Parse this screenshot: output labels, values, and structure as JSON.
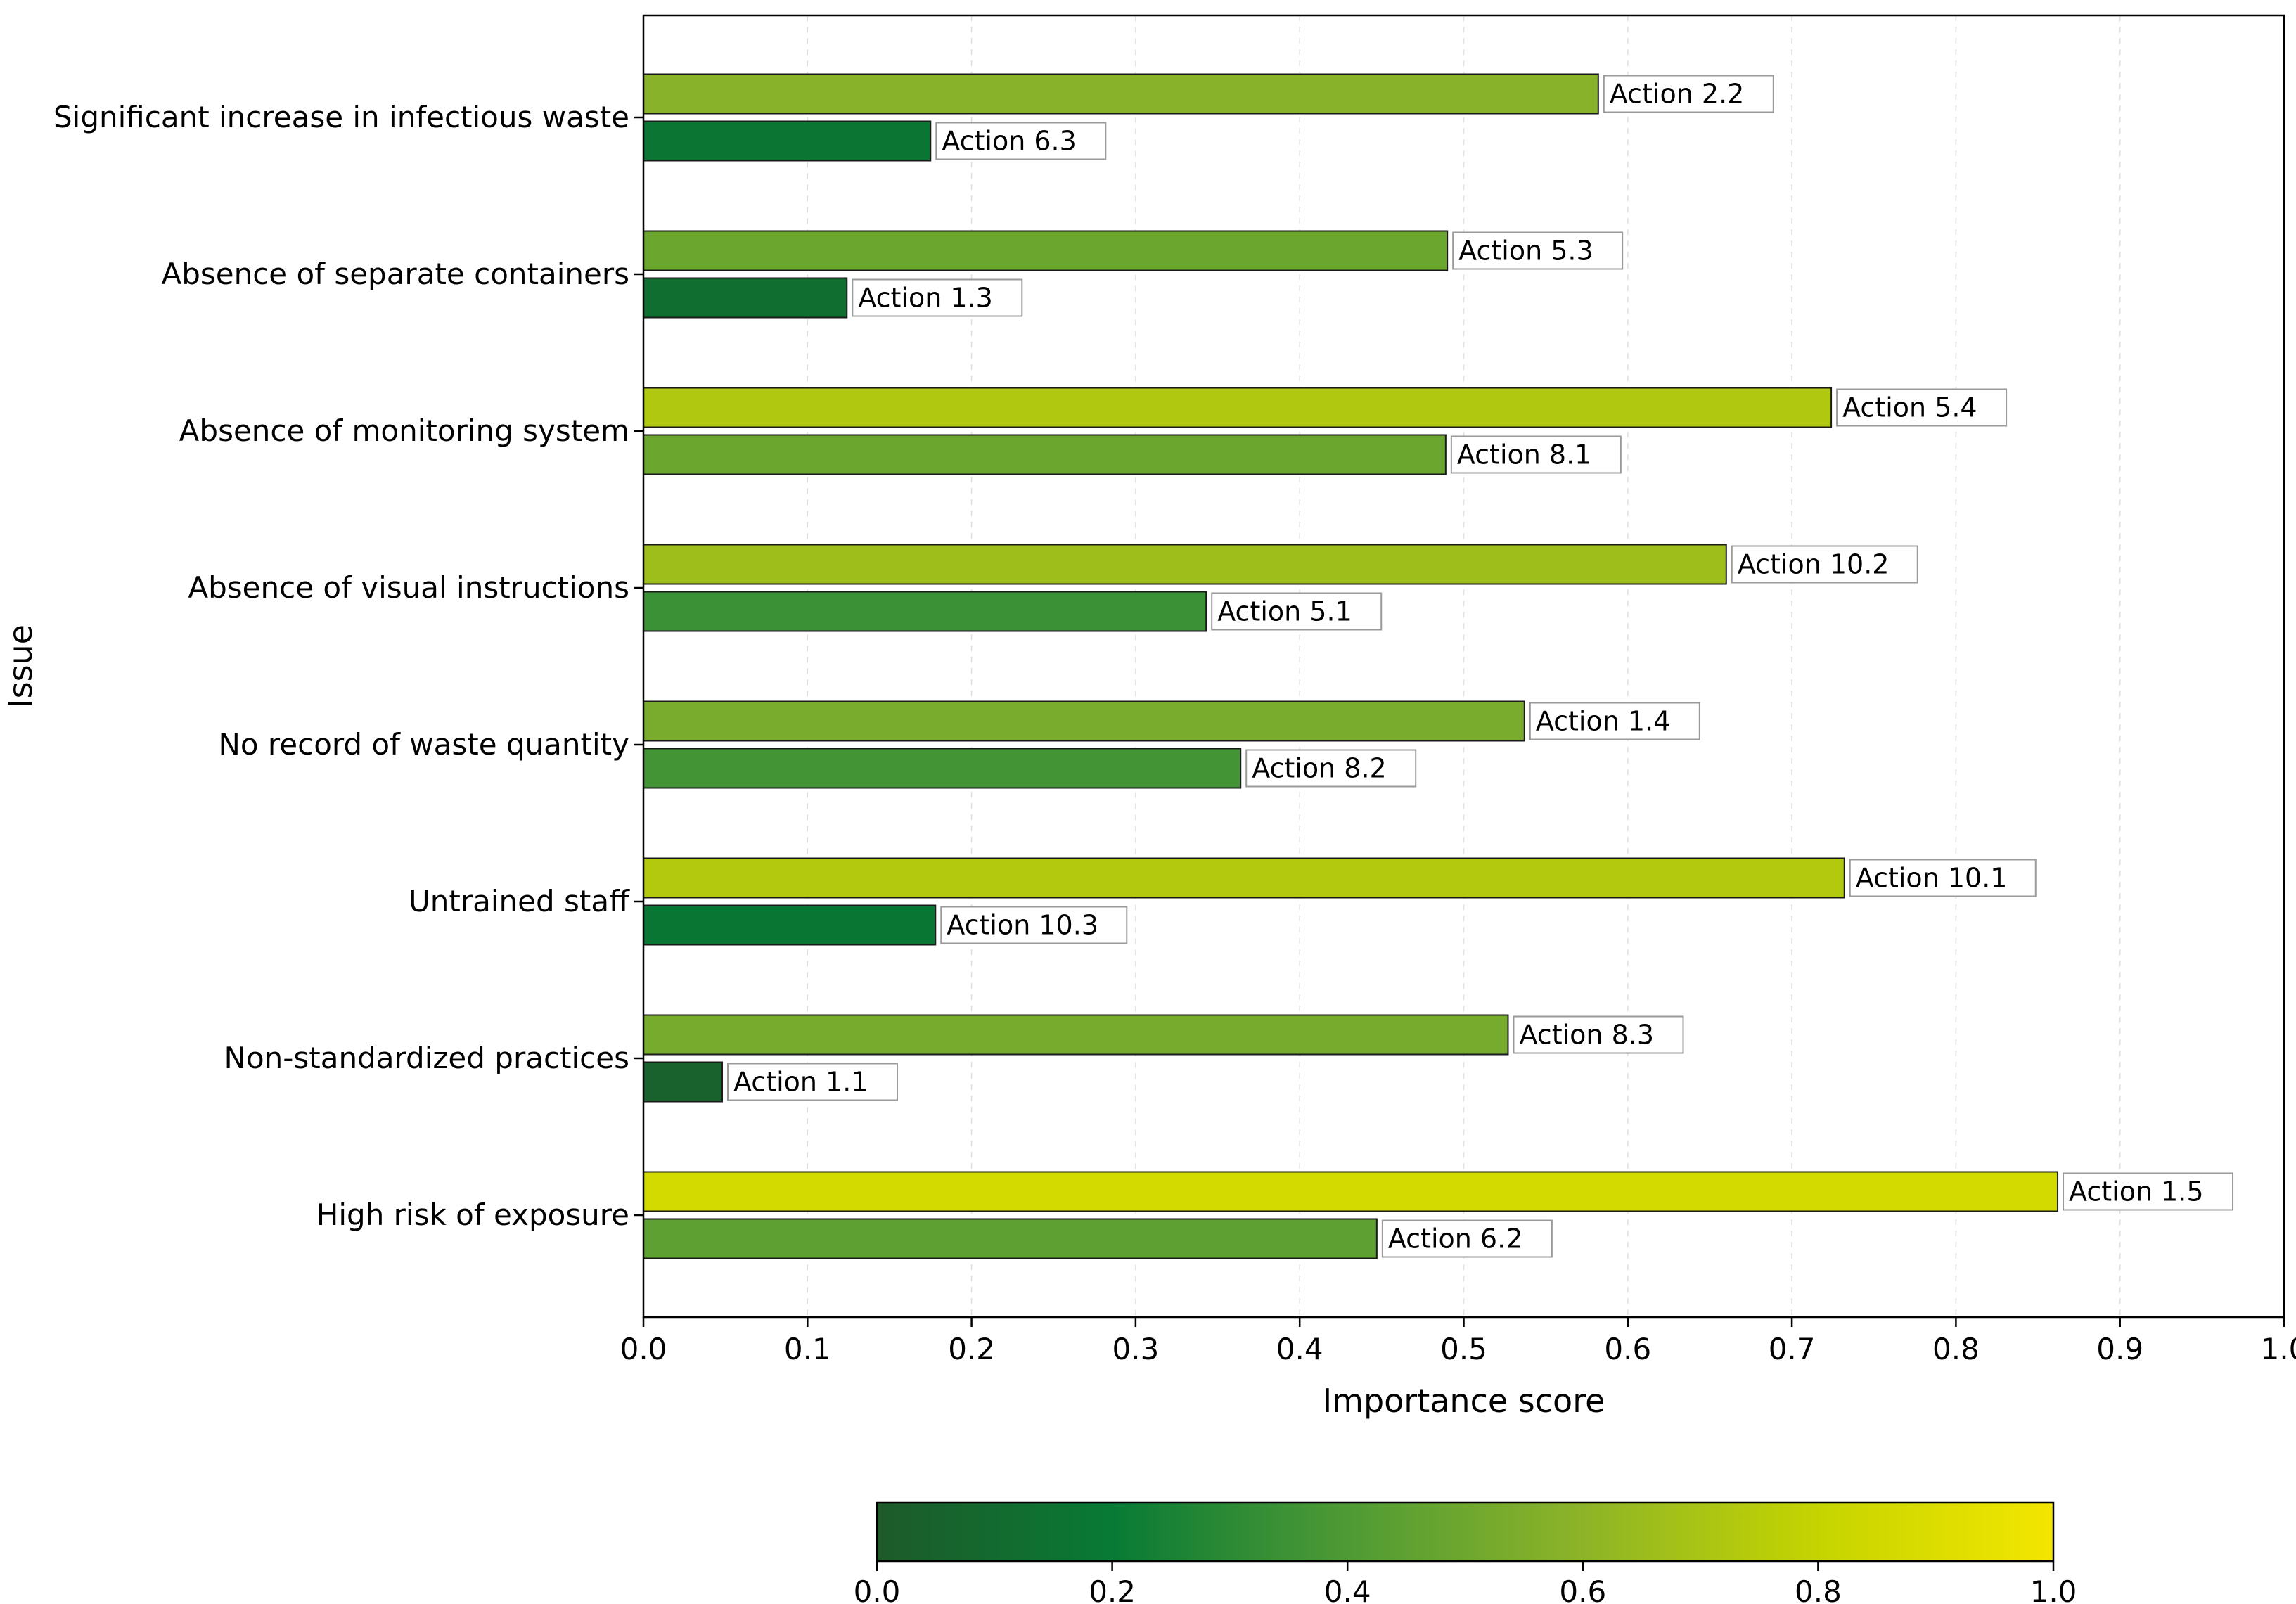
{
  "chart_data": {
    "type": "bar",
    "orientation": "horizontal",
    "title": "",
    "xlabel": "Importance score",
    "ylabel": "Issue",
    "xlim": [
      0,
      1.0
    ],
    "xticks": [
      "0.0",
      "0.1",
      "0.2",
      "0.3",
      "0.4",
      "0.5",
      "0.6",
      "0.7",
      "0.8",
      "0.9",
      "1.0"
    ],
    "grid": "vertical dashed",
    "categories": [
      {
        "label": "Significant increase in infectious waste",
        "bars": [
          {
            "action": "Action 2.2",
            "value": 0.582
          },
          {
            "action": "Action 6.3",
            "value": 0.175
          }
        ]
      },
      {
        "label": "Absence of separate containers",
        "bars": [
          {
            "action": "Action 5.3",
            "value": 0.49
          },
          {
            "action": "Action 1.3",
            "value": 0.124
          }
        ]
      },
      {
        "label": "Absence of monitoring system",
        "bars": [
          {
            "action": "Action 5.4",
            "value": 0.724
          },
          {
            "action": "Action 8.1",
            "value": 0.489
          }
        ]
      },
      {
        "label": "Absence of visual instructions",
        "bars": [
          {
            "action": "Action 10.2",
            "value": 0.66
          },
          {
            "action": "Action 5.1",
            "value": 0.343
          }
        ]
      },
      {
        "label": "No record of waste quantity",
        "bars": [
          {
            "action": "Action 1.4",
            "value": 0.537
          },
          {
            "action": "Action 8.2",
            "value": 0.364
          }
        ]
      },
      {
        "label": "Untrained staff",
        "bars": [
          {
            "action": "Action 10.1",
            "value": 0.732
          },
          {
            "action": "Action 10.3",
            "value": 0.178
          }
        ]
      },
      {
        "label": "Non-standardized practices",
        "bars": [
          {
            "action": "Action 8.3",
            "value": 0.527
          },
          {
            "action": "Action 1.1",
            "value": 0.048
          }
        ]
      },
      {
        "label": "High risk of exposure",
        "bars": [
          {
            "action": "Action 1.5",
            "value": 0.862
          },
          {
            "action": "Action 6.2",
            "value": 0.447
          }
        ]
      }
    ],
    "colorbar": {
      "range": [
        0.0,
        1.0
      ],
      "ticks": [
        "0.0",
        "0.2",
        "0.4",
        "0.6",
        "0.8",
        "1.0"
      ],
      "stops": [
        {
          "value": 0.0,
          "color": "#1e5a2a"
        },
        {
          "value": 0.2,
          "color": "#087a35"
        },
        {
          "value": 0.4,
          "color": "#4f9a35"
        },
        {
          "value": 0.6,
          "color": "#8db428"
        },
        {
          "value": 0.8,
          "color": "#c5d400"
        },
        {
          "value": 1.0,
          "color": "#f3e600"
        }
      ]
    }
  }
}
